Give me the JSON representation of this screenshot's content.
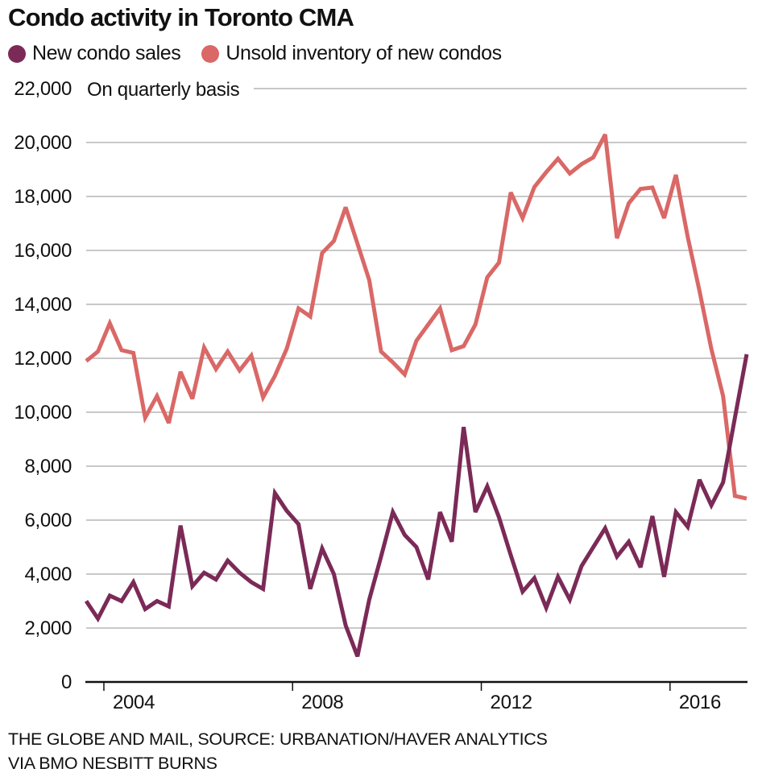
{
  "header": {
    "title": "Condo activity in Toronto CMA"
  },
  "legend": [
    {
      "label": "New condo sales",
      "color": "#7b2a57"
    },
    {
      "label": "Unsold inventory of new condos",
      "color": "#d96866"
    }
  ],
  "footer": {
    "line1": "THE GLOBE AND MAIL, SOURCE: URBANATION/HAVER ANALYTICS",
    "line2": "VIA BMO NESBITT BURNS"
  },
  "chart_data": {
    "type": "line",
    "title": "Condo activity in Toronto CMA",
    "subtitle": "On quarterly basis",
    "xlabel": "",
    "ylabel": "",
    "ylim": [
      0,
      22000
    ],
    "yticks": [
      0,
      2000,
      4000,
      6000,
      8000,
      10000,
      12000,
      14000,
      16000,
      18000,
      20000,
      22000
    ],
    "ytick_labels": [
      "0",
      "2,000",
      "4,000",
      "6,000",
      "8,000",
      "10,000",
      "12,000",
      "14,000",
      "16,000",
      "18,000",
      "20,000",
      "22,000"
    ],
    "xtick_labels": [
      "2004",
      "2008",
      "2012",
      "2016"
    ],
    "x_start": "2003 Q3",
    "x_end": "2017 Q3",
    "x_frequency": "quarterly",
    "grid": true,
    "legend_position": "top-left",
    "x": [
      "2003Q3",
      "2003Q4",
      "2004Q1",
      "2004Q2",
      "2004Q3",
      "2004Q4",
      "2005Q1",
      "2005Q2",
      "2005Q3",
      "2005Q4",
      "2006Q1",
      "2006Q2",
      "2006Q3",
      "2006Q4",
      "2007Q1",
      "2007Q2",
      "2007Q3",
      "2007Q4",
      "2008Q1",
      "2008Q2",
      "2008Q3",
      "2008Q4",
      "2009Q1",
      "2009Q2",
      "2009Q3",
      "2009Q4",
      "2010Q1",
      "2010Q2",
      "2010Q3",
      "2010Q4",
      "2011Q1",
      "2011Q2",
      "2011Q3",
      "2011Q4",
      "2012Q1",
      "2012Q2",
      "2012Q3",
      "2012Q4",
      "2013Q1",
      "2013Q2",
      "2013Q3",
      "2013Q4",
      "2014Q1",
      "2014Q2",
      "2014Q3",
      "2014Q4",
      "2015Q1",
      "2015Q2",
      "2015Q3",
      "2015Q4",
      "2016Q1",
      "2016Q2",
      "2016Q3",
      "2016Q4",
      "2017Q1",
      "2017Q2",
      "2017Q3"
    ],
    "series": [
      {
        "name": "New condo sales",
        "color": "#7b2a57",
        "values": [
          3000,
          2350,
          3200,
          3000,
          3700,
          2700,
          3000,
          2800,
          5800,
          3550,
          4050,
          3800,
          4500,
          4050,
          3700,
          3450,
          7000,
          6350,
          5850,
          3450,
          4950,
          4000,
          2100,
          950,
          3050,
          4650,
          6300,
          5450,
          5000,
          3800,
          6300,
          5200,
          9450,
          6300,
          7250,
          6100,
          4700,
          3350,
          3850,
          2750,
          3900,
          3050,
          4300,
          5000,
          5700,
          4650,
          5200,
          4250,
          6150,
          3900,
          6300,
          5750,
          7500,
          6550,
          7400,
          9800,
          12150
        ]
      },
      {
        "name": "Unsold inventory of new condos",
        "color": "#d96866",
        "values": [
          11900,
          12250,
          13300,
          12300,
          12200,
          9800,
          10600,
          9600,
          11500,
          10500,
          12400,
          11600,
          12250,
          11550,
          12100,
          10550,
          11350,
          12350,
          13850,
          13550,
          15900,
          16350,
          17600,
          16250,
          14900,
          12250,
          11850,
          11400,
          12650,
          13250,
          13850,
          12300,
          12450,
          13250,
          15000,
          15550,
          18150,
          17200,
          18350,
          18900,
          19400,
          18850,
          19200,
          19450,
          20300,
          16450,
          17750,
          18280,
          18330,
          17200,
          18800,
          16500,
          14500,
          12350,
          10600,
          6900,
          6800
        ]
      }
    ]
  }
}
